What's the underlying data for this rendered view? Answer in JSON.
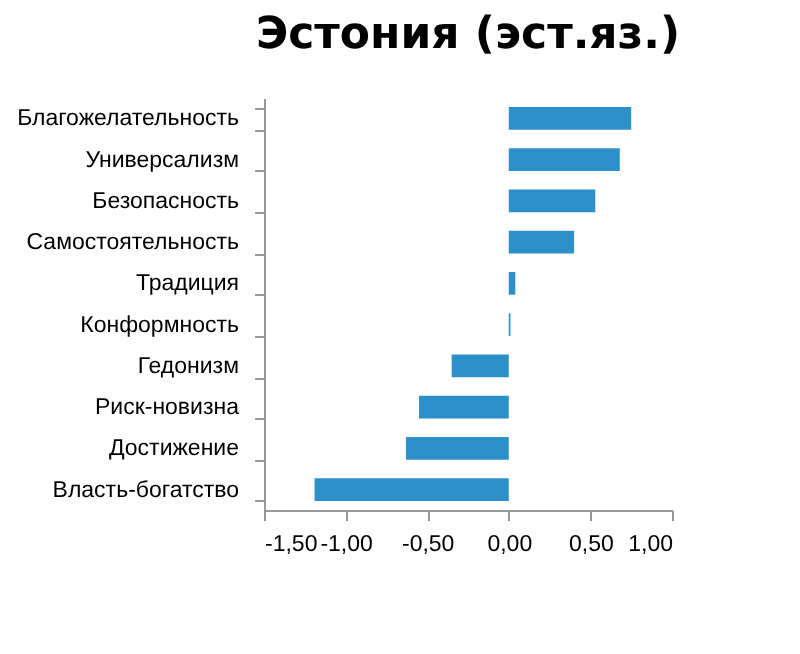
{
  "chart_data": {
    "type": "bar",
    "orientation": "horizontal",
    "title": "Эстония (эст.яз.)",
    "categories": [
      "Благожелательность",
      "Универсализм",
      "Безопасность",
      "Самостоятельность",
      "Традиция",
      "Конформность",
      "Гедонизм",
      "Риск-новизна",
      "Достижение",
      "Власть-богатство"
    ],
    "values": [
      0.75,
      0.68,
      0.53,
      0.4,
      0.04,
      0.01,
      -0.35,
      -0.55,
      -0.63,
      -1.19
    ],
    "color": "#2e90c8",
    "xlim": [
      -1.5,
      1.0
    ],
    "xticks": [
      {
        "value": -1.5,
        "label": "-1,50"
      },
      {
        "value": -1.0,
        "label": "-1,00"
      },
      {
        "value": -0.5,
        "label": "-0,50"
      },
      {
        "value": 0,
        "label": "0,00"
      },
      {
        "value": 0.5,
        "label": "0,50"
      },
      {
        "value": 1.0,
        "label": "1,00"
      }
    ],
    "grid": false
  }
}
